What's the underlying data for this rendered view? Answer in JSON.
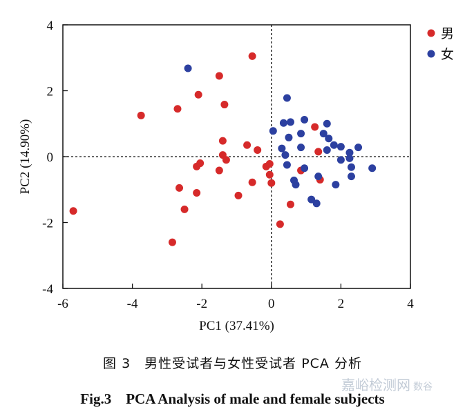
{
  "chart_data": {
    "type": "scatter",
    "xlabel": "PC1 (37.41%)",
    "ylabel": "PC2 (14.90%)",
    "xlim": [
      -6,
      4
    ],
    "ylim": [
      -4,
      4
    ],
    "xticks": [
      "-6",
      "-4",
      "-2",
      "0",
      "2",
      "4"
    ],
    "yticks": [
      "-4",
      "-2",
      "0",
      "2",
      "4"
    ],
    "reference_lines": {
      "x": 0,
      "y": 0,
      "style": "dashed"
    },
    "legend_position": "top-right",
    "series": [
      {
        "name": "男",
        "color": "#d62a2a",
        "points": [
          [
            -5.7,
            -1.65
          ],
          [
            -3.75,
            1.25
          ],
          [
            -2.85,
            -2.6
          ],
          [
            -2.7,
            1.45
          ],
          [
            -2.65,
            -0.95
          ],
          [
            -2.5,
            -1.6
          ],
          [
            -2.1,
            1.88
          ],
          [
            -2.05,
            -0.2
          ],
          [
            -2.15,
            -0.3
          ],
          [
            -2.15,
            -1.1
          ],
          [
            -1.5,
            2.45
          ],
          [
            -1.35,
            1.58
          ],
          [
            -1.4,
            0.48
          ],
          [
            -1.4,
            0.05
          ],
          [
            -1.3,
            -0.1
          ],
          [
            -1.5,
            -0.42
          ],
          [
            -0.95,
            -1.18
          ],
          [
            -0.7,
            0.35
          ],
          [
            -0.55,
            3.05
          ],
          [
            -0.55,
            -0.78
          ],
          [
            -0.4,
            0.2
          ],
          [
            -0.15,
            -0.3
          ],
          [
            -0.05,
            -0.22
          ],
          [
            -0.05,
            -0.55
          ],
          [
            0.0,
            -0.8
          ],
          [
            0.25,
            -2.05
          ],
          [
            0.55,
            -1.45
          ],
          [
            0.85,
            -0.42
          ],
          [
            1.25,
            0.9
          ],
          [
            1.35,
            0.15
          ],
          [
            1.4,
            -0.7
          ]
        ]
      },
      {
        "name": "女",
        "color": "#2c40a0",
        "points": [
          [
            -2.4,
            2.68
          ],
          [
            0.05,
            0.78
          ],
          [
            0.3,
            0.25
          ],
          [
            0.35,
            1.02
          ],
          [
            0.45,
            1.78
          ],
          [
            0.55,
            1.05
          ],
          [
            0.5,
            0.58
          ],
          [
            0.4,
            0.05
          ],
          [
            0.45,
            -0.25
          ],
          [
            0.65,
            -0.72
          ],
          [
            0.7,
            -0.85
          ],
          [
            0.85,
            0.7
          ],
          [
            0.85,
            0.28
          ],
          [
            0.95,
            1.12
          ],
          [
            0.95,
            -0.35
          ],
          [
            1.15,
            -1.3
          ],
          [
            1.3,
            -1.42
          ],
          [
            1.35,
            -0.6
          ],
          [
            1.5,
            0.7
          ],
          [
            1.6,
            0.2
          ],
          [
            1.6,
            1.0
          ],
          [
            1.65,
            0.55
          ],
          [
            1.8,
            0.35
          ],
          [
            1.85,
            -0.85
          ],
          [
            2.0,
            0.3
          ],
          [
            2.0,
            -0.1
          ],
          [
            2.25,
            0.12
          ],
          [
            2.25,
            -0.05
          ],
          [
            2.3,
            -0.32
          ],
          [
            2.3,
            -0.6
          ],
          [
            2.5,
            0.28
          ],
          [
            2.9,
            -0.35
          ]
        ]
      }
    ]
  },
  "caption": {
    "cn": "图 3　男性受试者与女性受试者 PCA 分析",
    "en": "Fig.3　PCA Analysis of male and female subjects"
  },
  "watermark": {
    "main": "嘉峪检测网",
    "sub": "数谷"
  }
}
